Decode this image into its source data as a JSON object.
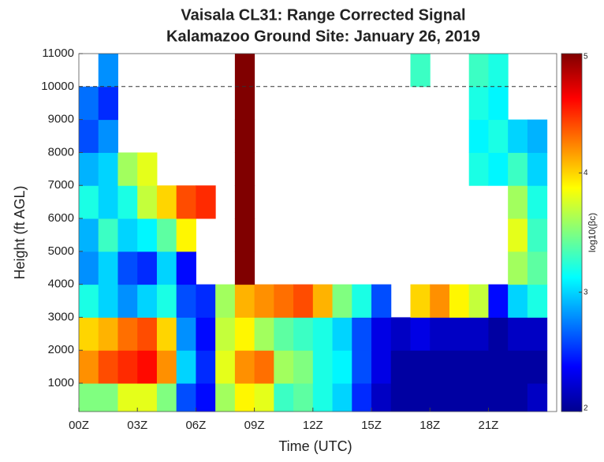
{
  "chart_data": {
    "type": "heatmap",
    "title": "Vaisala CL31: Range Corrected Signal",
    "subtitle": "Kalamazoo Ground Site: January 26, 2019",
    "x_label": "Time (UTC)",
    "y_label": "Height (ft AGL)",
    "colorbar_label": "log10(βc)",
    "x_bins": [
      0,
      1,
      2,
      3,
      4,
      5,
      6,
      7,
      8,
      9,
      10,
      11,
      12,
      13,
      14,
      15,
      16,
      17,
      18,
      19,
      20,
      21,
      22,
      23,
      24
    ],
    "y_bins": [
      140,
      1000,
      2000,
      3000,
      4000,
      5000,
      6000,
      7000,
      8000,
      9000,
      10000,
      11000
    ],
    "values": [
      [
        3.5,
        3.5,
        3.8,
        3.8,
        3.5,
        2.6,
        2.4,
        3.6,
        3.9,
        3.8,
        3.3,
        3.4,
        3.2,
        3.0,
        2.5,
        2.2,
        2.1,
        2.1,
        2.1,
        2.1,
        2.1,
        2.1,
        2.1,
        2.2
      ],
      [
        4.2,
        4.4,
        4.5,
        4.6,
        4.2,
        3.0,
        2.5,
        3.8,
        4.2,
        4.3,
        3.6,
        3.5,
        3.2,
        3.1,
        2.6,
        2.3,
        2.1,
        2.1,
        2.1,
        2.1,
        2.1,
        2.1,
        2.1,
        2.1
      ],
      [
        4.0,
        4.1,
        4.3,
        4.4,
        4.0,
        2.8,
        2.4,
        3.7,
        3.9,
        3.6,
        3.4,
        3.3,
        3.2,
        3.0,
        2.6,
        2.3,
        2.2,
        2.3,
        2.2,
        2.2,
        2.2,
        2.1,
        2.2,
        2.2
      ],
      [
        3.2,
        3.0,
        2.8,
        3.0,
        3.2,
        2.6,
        2.5,
        3.6,
        4.1,
        4.2,
        4.3,
        4.4,
        4.1,
        3.5,
        3.2,
        2.6,
        null,
        4.0,
        4.2,
        3.9,
        3.7,
        2.4,
        3.0,
        3.2
      ],
      [
        2.8,
        3.0,
        2.6,
        2.5,
        3.0,
        2.4,
        null,
        null,
        5.0,
        null,
        null,
        null,
        null,
        null,
        null,
        null,
        null,
        null,
        null,
        null,
        null,
        null,
        3.6,
        3.4
      ],
      [
        2.9,
        3.3,
        3.0,
        3.1,
        3.4,
        3.9,
        null,
        null,
        5.0,
        null,
        null,
        null,
        null,
        null,
        null,
        null,
        null,
        null,
        null,
        null,
        null,
        null,
        3.8,
        3.3
      ],
      [
        3.2,
        3.0,
        3.2,
        3.7,
        4.0,
        4.4,
        4.5,
        null,
        5.0,
        null,
        null,
        null,
        null,
        null,
        null,
        null,
        null,
        null,
        null,
        null,
        null,
        null,
        3.6,
        3.2
      ],
      [
        2.9,
        3.0,
        3.6,
        3.8,
        null,
        null,
        null,
        null,
        5.0,
        null,
        null,
        null,
        null,
        null,
        null,
        null,
        null,
        null,
        null,
        null,
        3.2,
        3.1,
        3.3,
        3.0
      ],
      [
        2.6,
        2.8,
        null,
        null,
        null,
        null,
        null,
        null,
        5.0,
        null,
        null,
        null,
        null,
        null,
        null,
        null,
        null,
        null,
        null,
        null,
        3.1,
        3.2,
        3.0,
        2.9
      ],
      [
        2.7,
        2.5,
        null,
        null,
        null,
        null,
        null,
        null,
        5.0,
        null,
        null,
        null,
        null,
        null,
        null,
        null,
        null,
        null,
        null,
        null,
        3.2,
        3.1,
        null,
        null
      ],
      [
        null,
        2.8,
        null,
        null,
        null,
        null,
        null,
        null,
        5.0,
        null,
        null,
        null,
        null,
        null,
        null,
        null,
        null,
        3.3,
        null,
        null,
        3.3,
        3.2,
        null,
        null
      ]
    ],
    "xlim": [
      0,
      24.5
    ],
    "ylim": [
      140,
      11000
    ],
    "xticks": [
      {
        "value": 0,
        "label": "00Z"
      },
      {
        "value": 3,
        "label": "03Z"
      },
      {
        "value": 6,
        "label": "06Z"
      },
      {
        "value": 9,
        "label": "09Z"
      },
      {
        "value": 12,
        "label": "12Z"
      },
      {
        "value": 15,
        "label": "15Z"
      },
      {
        "value": 18,
        "label": "18Z"
      },
      {
        "value": 21,
        "label": "21Z"
      }
    ],
    "yticks": [
      1000,
      2000,
      3000,
      4000,
      5000,
      6000,
      7000,
      8000,
      9000,
      10000,
      11000
    ],
    "reference_line": 10000,
    "clim": [
      2,
      5
    ],
    "cticks": [
      2,
      3,
      4,
      5
    ],
    "colormap": "jet"
  }
}
